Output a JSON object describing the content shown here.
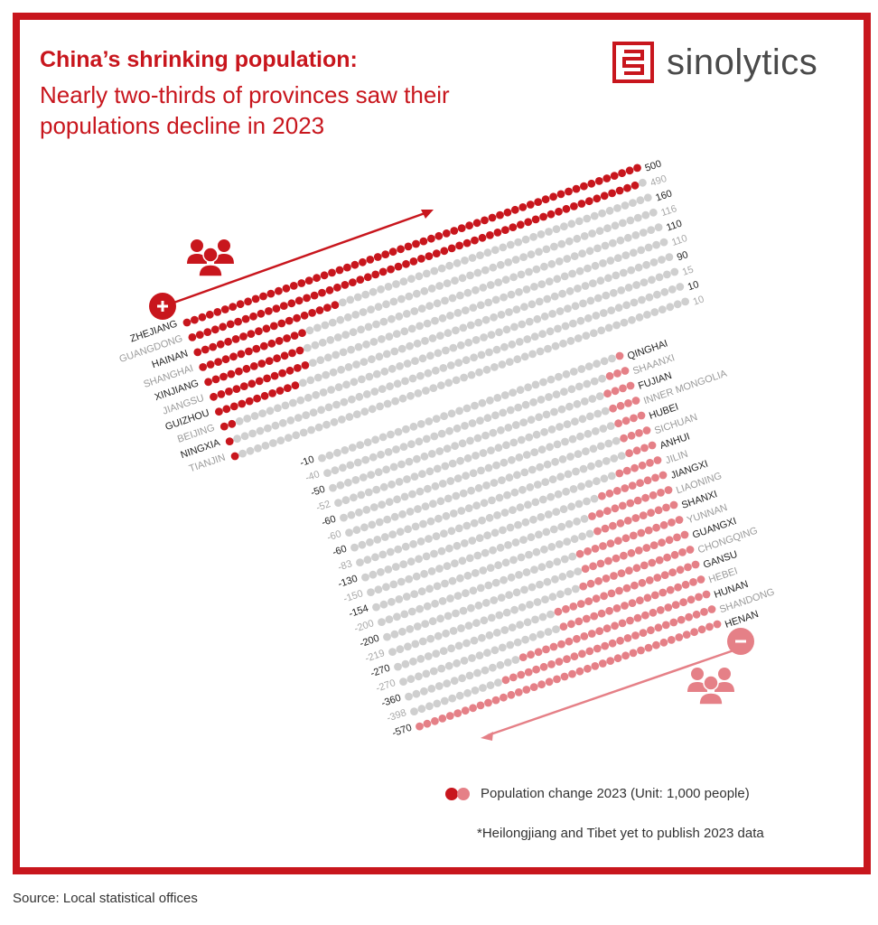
{
  "header": {
    "title": "China’s shrinking population:",
    "subtitle": "Nearly two-thirds of provinces saw their populations decline in 2023"
  },
  "brand": {
    "name": "sinolytics"
  },
  "legend": {
    "label": "Population change 2023 (Unit: 1,000 people)"
  },
  "footnote": "*Heilongjiang and Tibet yet to publish 2023 data",
  "source": "Source: Local statistical offices",
  "colors": {
    "frame": "#c8161d",
    "increase_dot": "#c8161d",
    "decrease_dot": "#e58087",
    "track_dot": "#cfcfcf",
    "label_bold": "#222222",
    "label_light": "#9a9a9a",
    "value_light": "#a8a8a8"
  },
  "icons": {
    "plus": "plus-circle-icon",
    "minus": "minus-circle-icon",
    "people": "people-group-icon"
  },
  "chart_data": {
    "type": "dot-bar",
    "unit": "1,000 people",
    "increase": [
      {
        "province": "ZHEJIANG",
        "value": 500
      },
      {
        "province": "GUANGDONG",
        "value": 490
      },
      {
        "province": "HAINAN",
        "value": 160
      },
      {
        "province": "SHANGHAI",
        "value": 116
      },
      {
        "province": "XINJIANG",
        "value": 110
      },
      {
        "province": "JIANGSU",
        "value": 110
      },
      {
        "province": "GUIZHOU",
        "value": 90
      },
      {
        "province": "BEIJING",
        "value": 15
      },
      {
        "province": "NINGXIA",
        "value": 10
      },
      {
        "province": "TIANJIN",
        "value": 10
      }
    ],
    "decrease": [
      {
        "province": "QINGHAI",
        "value": -10
      },
      {
        "province": "SHAANXI",
        "value": -40
      },
      {
        "province": "FUJIAN",
        "value": -50
      },
      {
        "province": "INNER MONGOLIA",
        "value": -52
      },
      {
        "province": "HUBEI",
        "value": -60
      },
      {
        "province": "SICHUAN",
        "value": -60
      },
      {
        "province": "ANHUI",
        "value": -60
      },
      {
        "province": "JILIN",
        "value": -83
      },
      {
        "province": "JIANGXI",
        "value": -130
      },
      {
        "province": "LIAONING",
        "value": -150
      },
      {
        "province": "SHANXI",
        "value": -154
      },
      {
        "province": "YUNNAN",
        "value": -200
      },
      {
        "province": "GUANGXI",
        "value": -200
      },
      {
        "province": "CHONGQING",
        "value": -219
      },
      {
        "province": "GANSU",
        "value": -270
      },
      {
        "province": "HEBEI",
        "value": -270
      },
      {
        "province": "HUNAN",
        "value": -360
      },
      {
        "province": "SHANDONG",
        "value": -398
      },
      {
        "province": "HENAN",
        "value": -570
      }
    ]
  }
}
